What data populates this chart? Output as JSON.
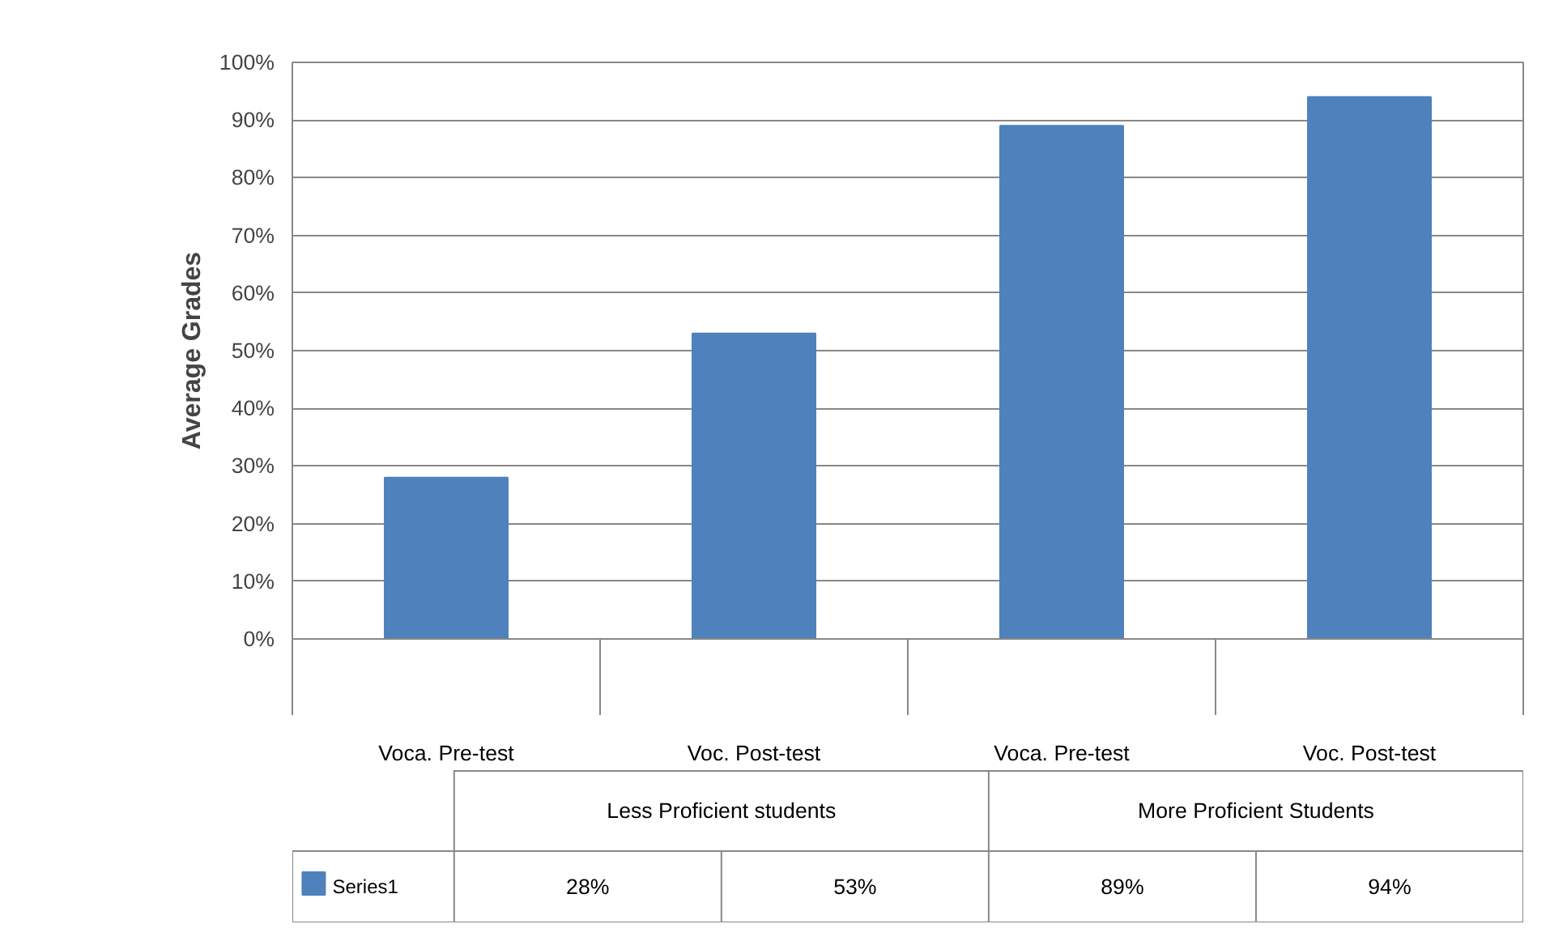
{
  "chart_data": {
    "type": "bar",
    "ylabel": "Average Grades",
    "categories": [
      "Voca. Pre-test",
      "Voc. Post-test",
      "Voca. Pre-test",
      "Voc. Post-test"
    ],
    "annotations": [
      "Less Proficient students",
      "More Proficient Students"
    ],
    "series": [
      {
        "name": "Series1",
        "color": "#4f81bd",
        "values": [
          28,
          53,
          89,
          94
        ],
        "value_labels": [
          "28%",
          "53%",
          "89%",
          "94%"
        ]
      }
    ],
    "ylim": [
      0,
      100
    ],
    "yticks": [
      {
        "value": 0,
        "label": "0%"
      },
      {
        "value": 10,
        "label": "10%"
      },
      {
        "value": 20,
        "label": "20%"
      },
      {
        "value": 30,
        "label": "30%"
      },
      {
        "value": 40,
        "label": "40%"
      },
      {
        "value": 50,
        "label": "50%"
      },
      {
        "value": 60,
        "label": "60%"
      },
      {
        "value": 70,
        "label": "70%"
      },
      {
        "value": 80,
        "label": "80%"
      },
      {
        "value": 90,
        "label": "90%"
      },
      {
        "value": 100,
        "label": "100%"
      }
    ],
    "grid": "y",
    "legend": "bottom"
  }
}
